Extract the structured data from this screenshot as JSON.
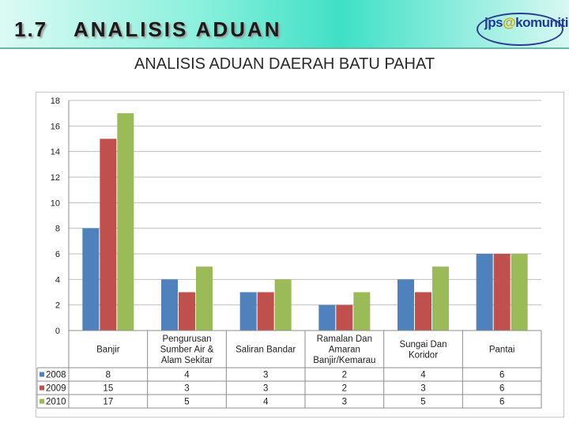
{
  "header": {
    "section_number": "1.7",
    "section_title": "ANALISIS ADUAN",
    "logo_text_a": "jps",
    "logo_text_b": "@",
    "logo_text_c": "komuniti"
  },
  "chart_data": {
    "type": "bar",
    "title": "ANALISIS ADUAN DAERAH BATU PAHAT",
    "categories": [
      [
        "Banjir"
      ],
      [
        "Pengurusan",
        "Sumber Air &",
        "Alam Sekitar"
      ],
      [
        "Saliran Bandar"
      ],
      [
        "Ramalan Dan",
        "Amaran",
        "Banjir/Kemarau"
      ],
      [
        "Sungai Dan",
        "Koridor"
      ],
      [
        "Pantai"
      ]
    ],
    "series": [
      {
        "name": "2008",
        "color": "#4f81bd",
        "values": [
          8,
          4,
          3,
          2,
          4,
          6
        ]
      },
      {
        "name": "2009",
        "color": "#c0504d",
        "values": [
          15,
          3,
          3,
          2,
          3,
          6
        ]
      },
      {
        "name": "2010",
        "color": "#9bbb59",
        "values": [
          17,
          5,
          4,
          3,
          5,
          6
        ]
      }
    ],
    "ylim": [
      0,
      18
    ],
    "yticks": [
      0,
      2,
      4,
      6,
      8,
      10,
      12,
      14,
      16,
      18
    ],
    "grid": true,
    "legend": "data-table-left"
  }
}
